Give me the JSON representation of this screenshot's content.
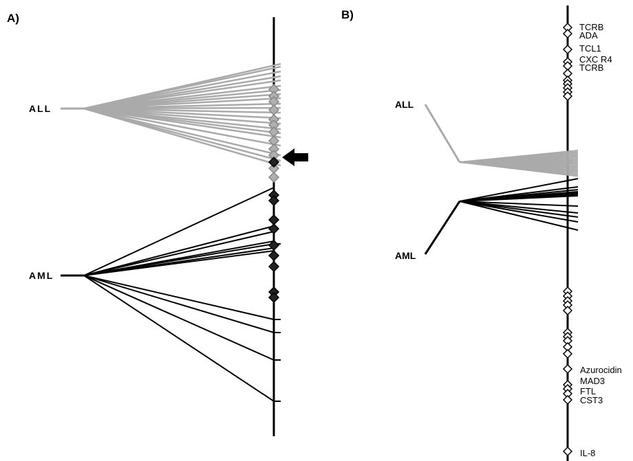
{
  "panel_a": {
    "label": "A)",
    "group_all": "ALL",
    "group_aml": "AML",
    "all_color": "#aaaaaa",
    "aml_color": "#000000"
  },
  "panel_b": {
    "label": "B)",
    "group_all": "ALL",
    "group_aml": "AML",
    "genes": [
      "TCRB",
      "ADA",
      "TCL1",
      "CXC R4",
      "TCRB",
      "Azurocidin",
      "MAD3",
      "FTL",
      "CST3",
      "IL-8"
    ]
  }
}
